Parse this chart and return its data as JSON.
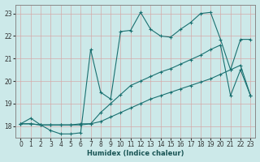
{
  "xlabel": "Humidex (Indice chaleur)",
  "ylabel": "",
  "bg_color": "#cce9e9",
  "grid_color": "#b8d4d4",
  "line_color": "#1a7070",
  "xlim": [
    -0.5,
    23.5
  ],
  "ylim": [
    17.5,
    23.4
  ],
  "xticks": [
    0,
    1,
    2,
    3,
    4,
    5,
    6,
    7,
    8,
    9,
    10,
    11,
    12,
    13,
    14,
    15,
    16,
    17,
    18,
    19,
    20,
    21,
    22,
    23
  ],
  "yticks": [
    18,
    19,
    20,
    21,
    22,
    23
  ],
  "line1_x": [
    0,
    1,
    2,
    3,
    4,
    5,
    6,
    7,
    8,
    9,
    10,
    11,
    12,
    13,
    14,
    15,
    16,
    17,
    18,
    19,
    20,
    21,
    22,
    23
  ],
  "line1_y": [
    18.1,
    18.35,
    18.05,
    17.8,
    17.65,
    17.65,
    17.7,
    21.4,
    19.5,
    19.2,
    22.2,
    22.25,
    23.05,
    22.3,
    22.0,
    21.95,
    22.3,
    22.6,
    23.0,
    23.05,
    21.85,
    20.5,
    21.85,
    21.85
  ],
  "line2_x": [
    0,
    1,
    2,
    3,
    4,
    5,
    6,
    7,
    8,
    9,
    10,
    11,
    12,
    13,
    14,
    15,
    16,
    17,
    18,
    19,
    20,
    21,
    22,
    23
  ],
  "line2_y": [
    18.1,
    18.1,
    18.05,
    18.05,
    18.05,
    18.05,
    18.1,
    18.1,
    18.6,
    19.0,
    19.4,
    19.8,
    20.0,
    20.2,
    20.4,
    20.55,
    20.75,
    20.95,
    21.15,
    21.4,
    21.6,
    19.35,
    20.5,
    19.35
  ],
  "line3_x": [
    0,
    1,
    2,
    3,
    4,
    5,
    6,
    7,
    8,
    9,
    10,
    11,
    12,
    13,
    14,
    15,
    16,
    17,
    18,
    19,
    20,
    21,
    22,
    23
  ],
  "line3_y": [
    18.1,
    18.1,
    18.05,
    18.05,
    18.05,
    18.05,
    18.05,
    18.1,
    18.2,
    18.4,
    18.6,
    18.8,
    19.0,
    19.2,
    19.35,
    19.5,
    19.65,
    19.8,
    19.95,
    20.1,
    20.3,
    20.5,
    20.7,
    19.35
  ]
}
